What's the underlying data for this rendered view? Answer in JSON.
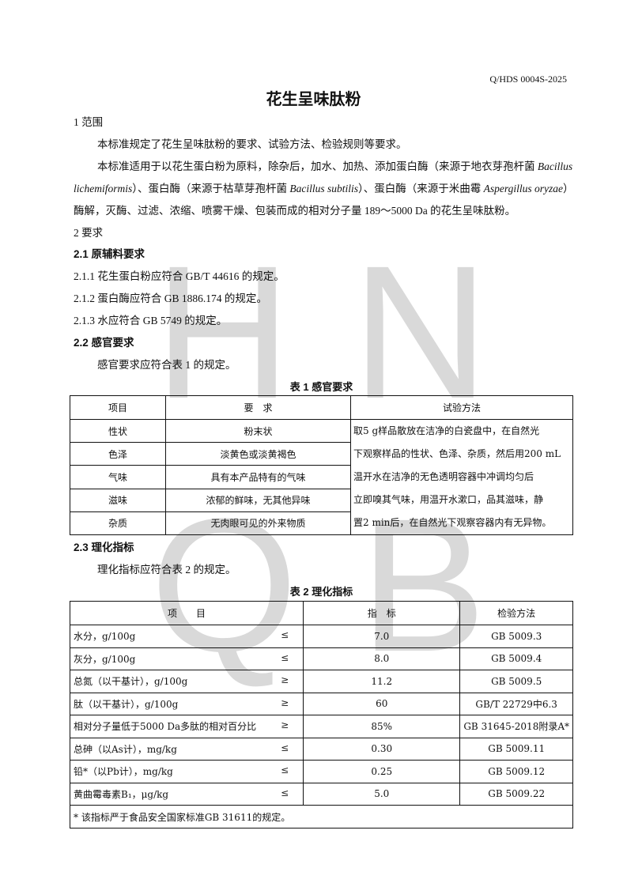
{
  "header": {
    "code": "Q/HDS 0004S-2025"
  },
  "title": "花生呈味肽粉",
  "watermark": [
    "H",
    "N",
    "Q",
    "B"
  ],
  "s1": {
    "heading": "1 范围",
    "p1": "本标准规定了花生呈味肽粉的要求、试验方法、检验规则等要求。",
    "p2_l1a": "本标准适用于以花生蛋白粉为原料，除杂后，加水、加热、添加蛋白酶（来源于地衣芽孢杆菌 ",
    "p2_l1b": "Bacillus",
    "p2_l2a": "lichemiformis",
    "p2_l2b": "）、蛋白酶（来源于枯草芽孢杆菌 ",
    "p2_l2c": "Bacillus subtilis",
    "p2_l2d": "）、蛋白酶（来源于米曲霉 ",
    "p2_l2e": "Aspergillus oryzae",
    "p2_l2f": "）",
    "p2_l3": "酶解，灭酶、过滤、浓缩、喷雾干燥、包装而成的相对分子量 189～5000 Da 的花生呈味肽粉。"
  },
  "s2": {
    "heading": "2 要求",
    "s21": "2.1 原辅料要求",
    "i1": "2.1.1 花生蛋白粉应符合 GB/T 44616 的规定。",
    "i2": "2.1.2 蛋白酶应符合 GB 1886.174 的规定。",
    "i3": "2.1.3 水应符合 GB 5749 的规定。",
    "s22": "2.2 感官要求",
    "p22": "感官要求应符合表 1 的规定。",
    "s23": "2.3 理化指标",
    "p23": "理化指标应符合表 2 的规定。"
  },
  "table1": {
    "caption": "表 1 感官要求",
    "headers": [
      "项目",
      "要　求",
      "试验方法"
    ],
    "rows": [
      [
        "性状",
        "粉末状"
      ],
      [
        "色泽",
        "淡黄色或淡黄褐色"
      ],
      [
        "气味",
        "具有本产品特有的气味"
      ],
      [
        "滋味",
        "浓郁的鲜味，无其他异味"
      ],
      [
        "杂质",
        "无肉眼可见的外来物质"
      ]
    ],
    "method": [
      "取5 g样品散放在洁净的白瓷盘中，在自然光",
      "下观察样品的性状、色泽、杂质，然后用200 mL",
      "温开水在洁净的无色透明容器中冲调均匀后",
      "立即嗅其气味，用温开水漱口，品其滋味，静",
      "置2 min后，在自然光下观察容器内有无异物。"
    ]
  },
  "table2": {
    "caption": "表 2  理化指标",
    "headers": [
      "项　　目",
      "指　标",
      "检验方法"
    ],
    "rows": [
      {
        "name": "水分，g/100g",
        "op": "≤",
        "value": "7.0",
        "method": "GB 5009.3"
      },
      {
        "name": "灰分，g/100g",
        "op": "≤",
        "value": "8.0",
        "method": "GB 5009.4"
      },
      {
        "name": "总氮（以干基计），g/100g",
        "op": "≥",
        "value": "11.2",
        "method": "GB 5009.5"
      },
      {
        "name": "肽（以干基计），g/100g",
        "op": "≥",
        "value": "60",
        "method": "GB/T 22729中6.3"
      },
      {
        "name": "相对分子量低于5000 Da多肽的相对百分比",
        "op": "≥",
        "value": "85%",
        "method": "GB 31645-2018附录A*"
      },
      {
        "name": "总砷（以As计），mg/kg",
        "op": "≤",
        "value": "0.30",
        "method": "GB 5009.11"
      },
      {
        "name": "铅*（以Pb计），mg/kg",
        "op": "≤",
        "value": "0.25",
        "method": "GB 5009.12"
      },
      {
        "name": "黄曲霉毒素B₁，μg/kg",
        "op": "≤",
        "value": "5.0",
        "method": "GB 5009.22"
      }
    ],
    "footnote": "* 该指标严于食品安全国家标准GB 31611的规定。"
  }
}
